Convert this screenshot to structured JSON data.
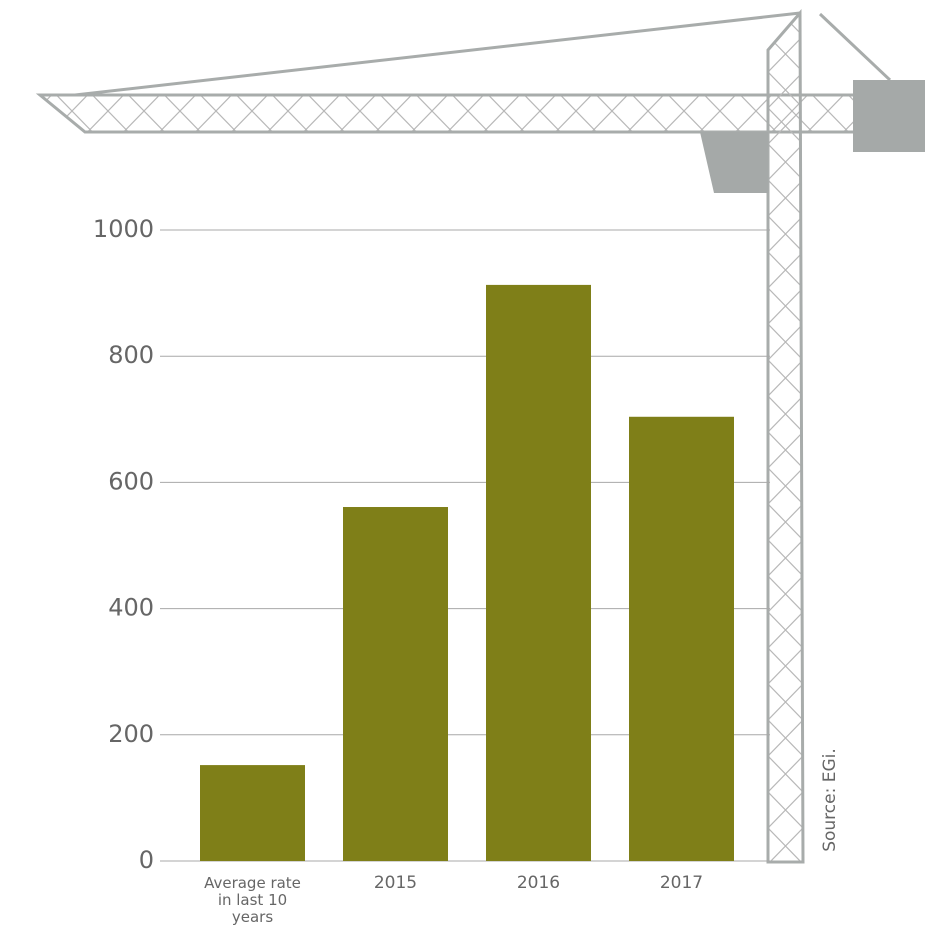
{
  "chart_data": {
    "type": "bar",
    "categories": [
      "Average rate in last 10 years",
      "2015",
      "2016",
      "2017"
    ],
    "values": [
      152,
      561,
      913,
      704
    ],
    "color": "#7f7f18",
    "ylim": [
      0,
      1000
    ],
    "yticks": [
      0,
      200,
      400,
      600,
      800,
      1000
    ],
    "grid": true,
    "source": "Source: EGi."
  }
}
